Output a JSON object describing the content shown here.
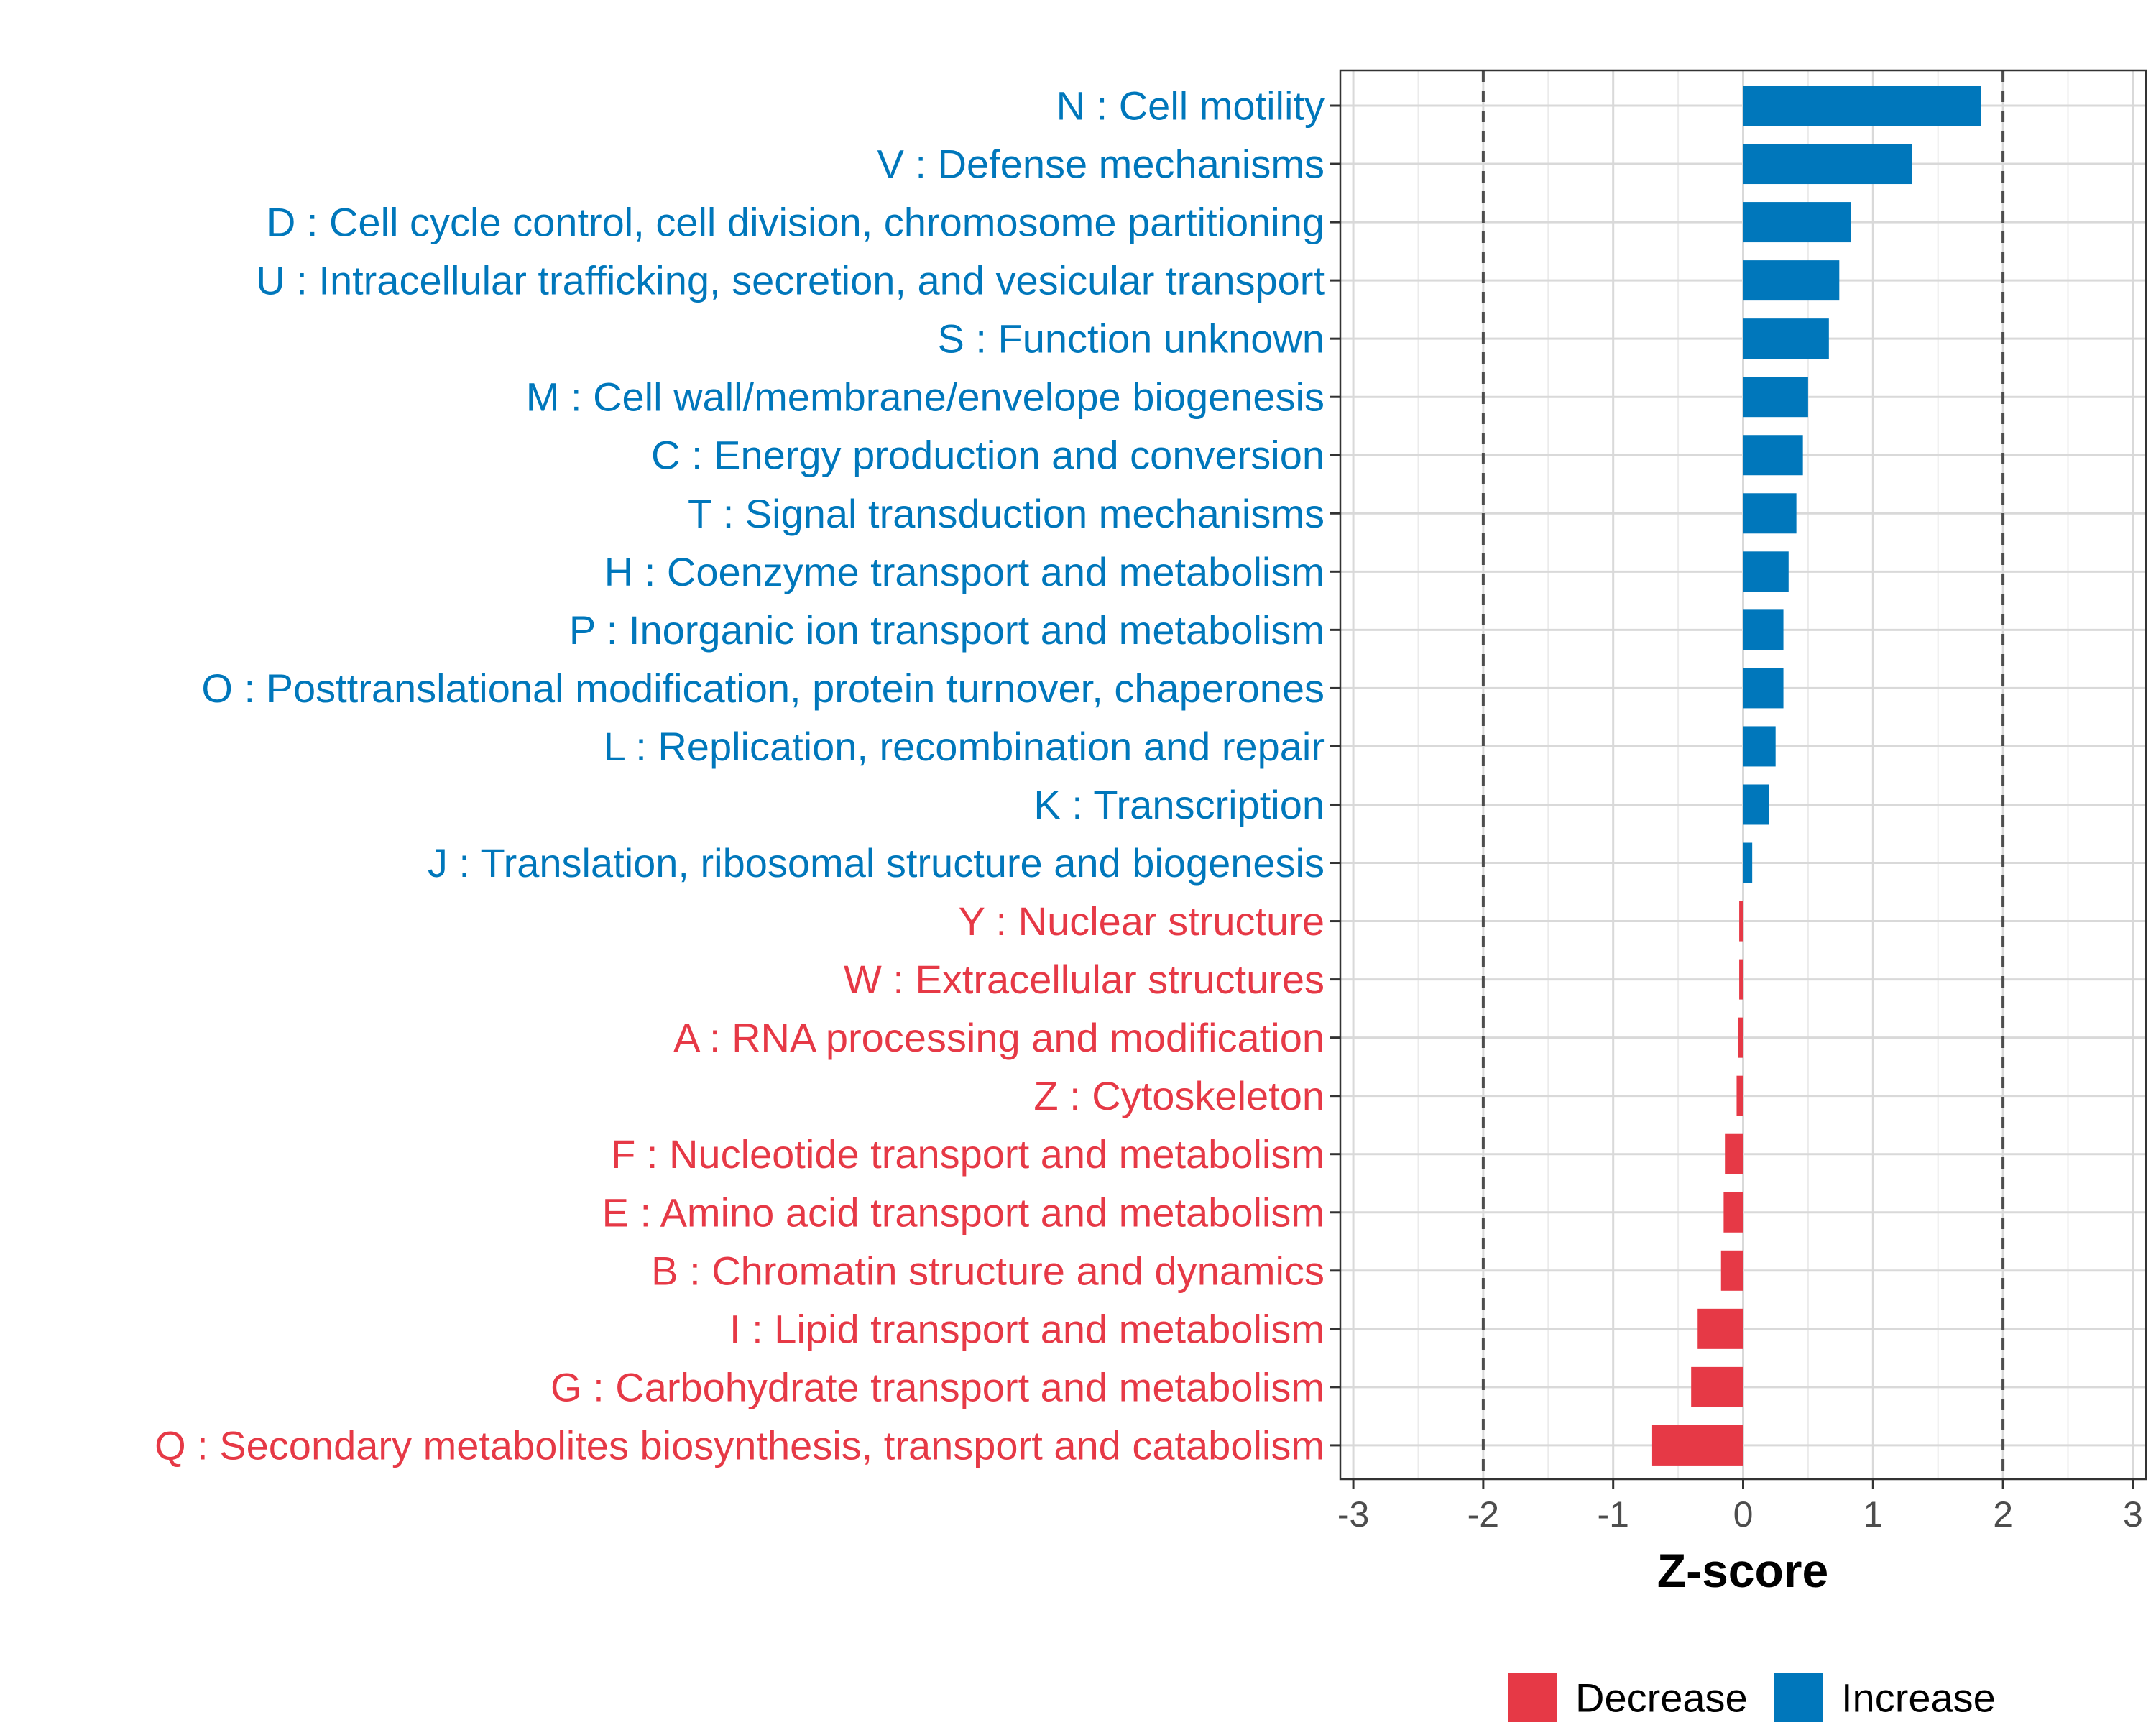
{
  "chart_data": {
    "type": "bar",
    "orientation": "horizontal",
    "title": "",
    "xlabel": "Z-score",
    "ylabel": "",
    "xlim": [
      -3.1,
      3.1
    ],
    "xticks": [
      -3,
      -2,
      -1,
      0,
      1,
      2,
      3
    ],
    "tick_labels": [
      "-3",
      "-2",
      "-1",
      "0",
      "1",
      "2",
      "3"
    ],
    "threshold_lines": [
      -2,
      2
    ],
    "grid": true,
    "colors": {
      "Increase": "#0077bb",
      "Decrease": "#e63946"
    },
    "categories": [
      "N : Cell motility",
      "V : Defense mechanisms",
      "D : Cell cycle control, cell division, chromosome partitioning",
      "U : Intracellular trafficking, secretion, and vesicular transport",
      "S : Function unknown",
      "M : Cell wall/membrane/envelope biogenesis",
      "C : Energy production and conversion",
      "T : Signal transduction mechanisms",
      "H : Coenzyme transport and metabolism",
      "P : Inorganic ion transport and metabolism",
      "O : Posttranslational modification, protein turnover, chaperones",
      "L : Replication, recombination and repair",
      "K : Transcription",
      "J : Translation, ribosomal structure and biogenesis",
      "Y : Nuclear structure",
      "W : Extracellular structures",
      "A : RNA processing and modification",
      "Z : Cytoskeleton",
      "F : Nucleotide transport and metabolism",
      "E : Amino acid transport and metabolism",
      "B : Chromatin structure and dynamics",
      "I : Lipid transport and metabolism",
      "G : Carbohydrate transport and metabolism",
      "Q : Secondary metabolites biosynthesis, transport and catabolism"
    ],
    "values": [
      1.83,
      1.3,
      0.83,
      0.74,
      0.66,
      0.5,
      0.46,
      0.41,
      0.35,
      0.31,
      0.31,
      0.25,
      0.2,
      0.07,
      -0.03,
      -0.03,
      -0.04,
      -0.05,
      -0.14,
      -0.15,
      -0.17,
      -0.35,
      -0.4,
      -0.7
    ],
    "groups": [
      "Increase",
      "Increase",
      "Increase",
      "Increase",
      "Increase",
      "Increase",
      "Increase",
      "Increase",
      "Increase",
      "Increase",
      "Increase",
      "Increase",
      "Increase",
      "Increase",
      "Decrease",
      "Decrease",
      "Decrease",
      "Decrease",
      "Decrease",
      "Decrease",
      "Decrease",
      "Decrease",
      "Decrease",
      "Decrease"
    ],
    "legend": {
      "position": "bottom",
      "entries": [
        {
          "label": "Decrease",
          "color": "#e63946"
        },
        {
          "label": "Increase",
          "color": "#0077bb"
        }
      ]
    }
  }
}
